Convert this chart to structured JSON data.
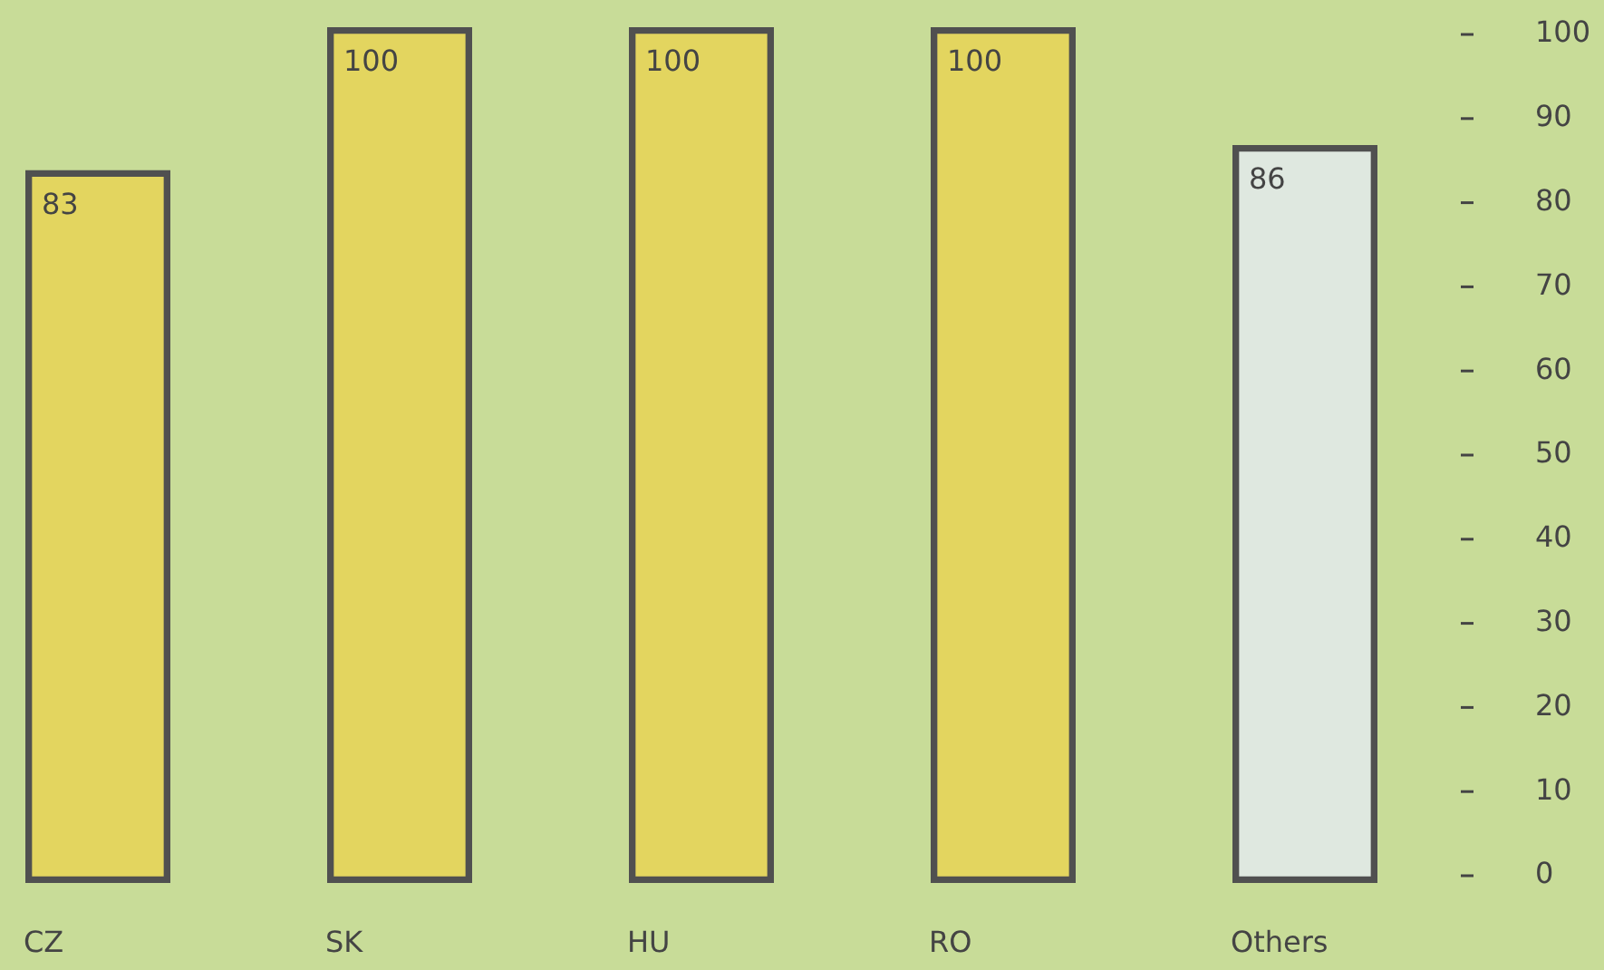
{
  "chart_data": {
    "type": "bar",
    "categories": [
      "CZ",
      "SK",
      "HU",
      "RO",
      "Others"
    ],
    "values": [
      83,
      100,
      100,
      100,
      86
    ],
    "colors": [
      "#e3d55f",
      "#e3d55f",
      "#e3d55f",
      "#e3d55f",
      "#dfe8e0"
    ],
    "ylim": [
      0,
      100
    ],
    "yticks": [
      0,
      10,
      20,
      30,
      40,
      50,
      60,
      70,
      80,
      90,
      100
    ],
    "grid": false,
    "legend": false,
    "data_labels": true
  }
}
